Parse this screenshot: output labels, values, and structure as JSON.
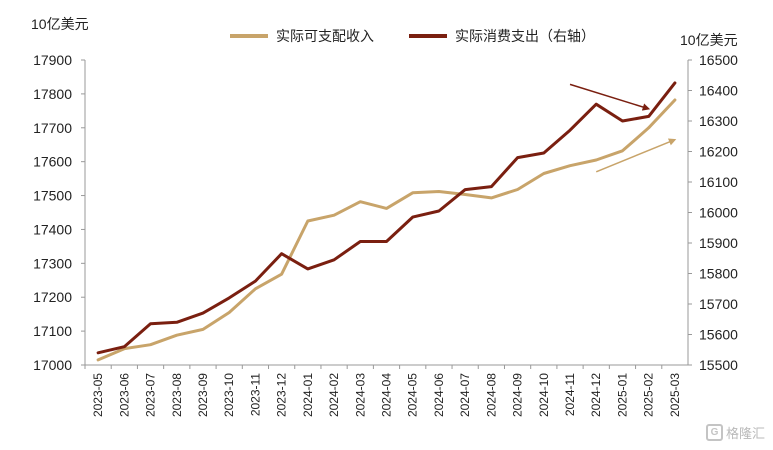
{
  "chart_data": {
    "type": "line",
    "left_unit": "10亿美元",
    "right_unit": "10亿美元",
    "x": [
      "2023-05",
      "2023-06",
      "2023-07",
      "2023-08",
      "2023-09",
      "2023-10",
      "2023-11",
      "2023-12",
      "2024-01",
      "2024-02",
      "2024-03",
      "2024-04",
      "2024-05",
      "2024-06",
      "2024-07",
      "2024-08",
      "2024-09",
      "2024-10",
      "2024-11",
      "2024-12",
      "2025-01",
      "2025-02",
      "2025-03"
    ],
    "ylim_left": [
      17000,
      17900
    ],
    "yticks_left": [
      17000,
      17100,
      17200,
      17300,
      17400,
      17500,
      17600,
      17700,
      17800,
      17900
    ],
    "ylim_right": [
      15500,
      16500
    ],
    "yticks_right": [
      15500,
      15600,
      15700,
      15800,
      15900,
      16000,
      16100,
      16200,
      16300,
      16400,
      16500
    ],
    "series": [
      {
        "name": "实际可支配收入",
        "axis": "left",
        "color": "#c8a46a",
        "values": [
          17015,
          17048,
          17060,
          17088,
          17105,
          17155,
          17225,
          17268,
          17425,
          17442,
          17482,
          17462,
          17508,
          17512,
          17503,
          17493,
          17518,
          17565,
          17588,
          17605,
          17632,
          17700,
          17782
        ]
      },
      {
        "name": "实际消费支出（右轴）",
        "axis": "right",
        "color": "#7a1f10",
        "values": [
          15540,
          15560,
          15635,
          15640,
          15670,
          15720,
          15775,
          15865,
          15815,
          15845,
          15905,
          15905,
          15985,
          16005,
          16075,
          16085,
          16180,
          16195,
          16270,
          16355,
          16300,
          16315,
          16425
        ]
      }
    ],
    "annotations": [
      {
        "type": "arrow",
        "color": "#7a1f10",
        "from_x": "2024-11",
        "from_value_right": 16420,
        "to_x": "2025-02",
        "to_value_right": 16340
      },
      {
        "type": "arrow",
        "color": "#c8a46a",
        "from_x": "2024-12",
        "from_value_left": 17570,
        "to_x": "2025-03",
        "to_value_left": 17665
      }
    ],
    "legend": "top-center",
    "grid": false
  },
  "watermark": "格隆汇",
  "watermark_icon": "G"
}
